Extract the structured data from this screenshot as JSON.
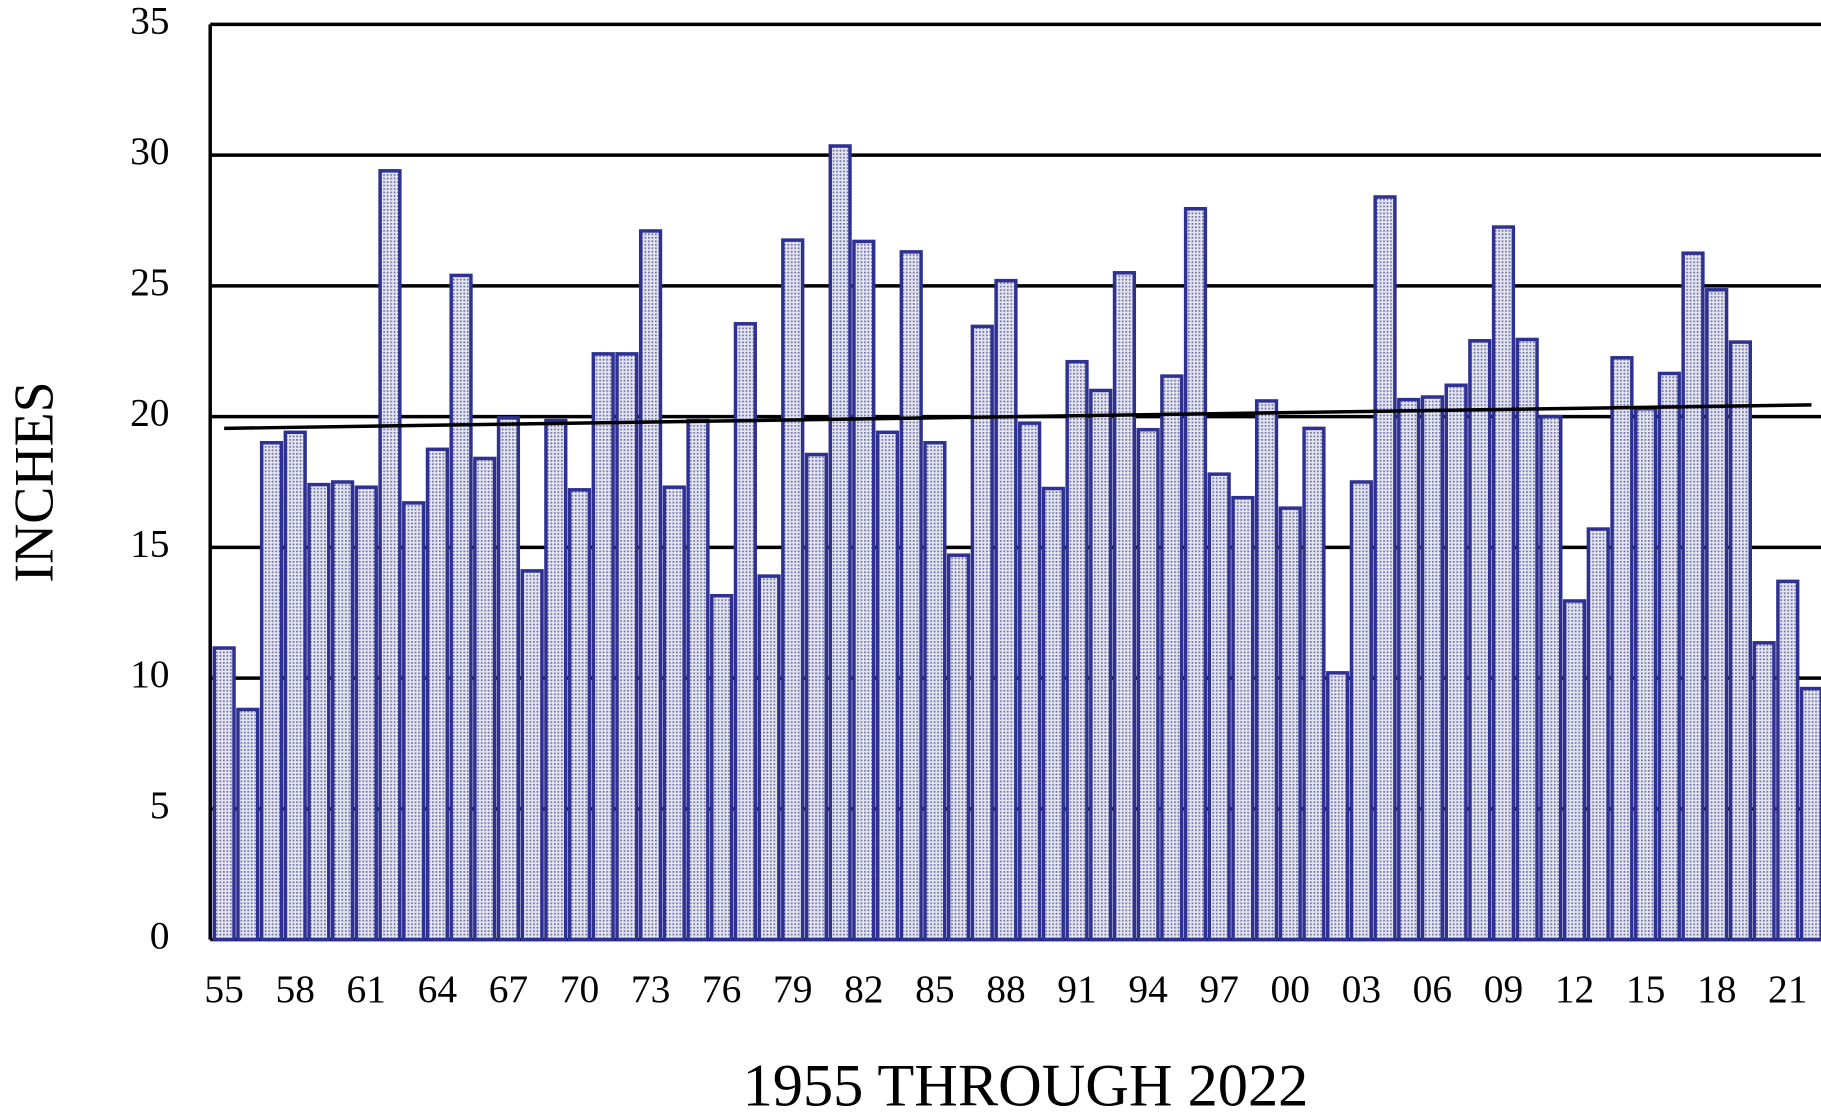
{
  "chart_data": {
    "type": "bar",
    "xlabel": "1955  THROUGH  2022",
    "ylabel": "INCHES",
    "categories": [
      "55",
      null,
      null,
      "58",
      null,
      null,
      "61",
      null,
      null,
      "64",
      null,
      null,
      "67",
      null,
      null,
      "70",
      null,
      null,
      "73",
      null,
      null,
      "76",
      null,
      null,
      "79",
      null,
      null,
      "82",
      null,
      null,
      "85",
      null,
      null,
      "88",
      null,
      null,
      "91",
      null,
      null,
      "94",
      null,
      null,
      "97",
      null,
      null,
      "00",
      null,
      null,
      "03",
      null,
      null,
      "06",
      null,
      null,
      "09",
      null,
      null,
      "12",
      null,
      null,
      "15",
      null,
      null,
      "18",
      null,
      null,
      "21",
      null
    ],
    "values": [
      11.15,
      8.8,
      19.0,
      19.4,
      17.4,
      17.5,
      17.3,
      29.4,
      16.7,
      18.75,
      25.4,
      18.4,
      19.95,
      14.1,
      19.85,
      17.2,
      22.4,
      22.4,
      27.1,
      17.3,
      19.85,
      13.15,
      23.55,
      13.9,
      26.75,
      18.55,
      30.35,
      26.7,
      19.4,
      26.3,
      19.0,
      14.7,
      23.45,
      25.2,
      19.75,
      17.25,
      22.1,
      21.0,
      25.5,
      19.5,
      21.55,
      27.95,
      17.8,
      16.9,
      20.6,
      16.5,
      19.55,
      10.2,
      17.5,
      28.4,
      20.65,
      20.75,
      21.2,
      22.9,
      27.25,
      22.95,
      20.0,
      12.95,
      15.7,
      22.25,
      20.3,
      21.65,
      26.25,
      24.85,
      22.85,
      11.35,
      13.7,
      9.6
    ],
    "color": "#c8cadf",
    "edge_color": "#2e3192",
    "trendline": [
      19.55,
      20.45
    ],
    "ylim": [
      0,
      35
    ],
    "yticks": [
      0,
      5,
      10,
      15,
      20,
      25,
      30,
      35
    ],
    "grid": true
  }
}
